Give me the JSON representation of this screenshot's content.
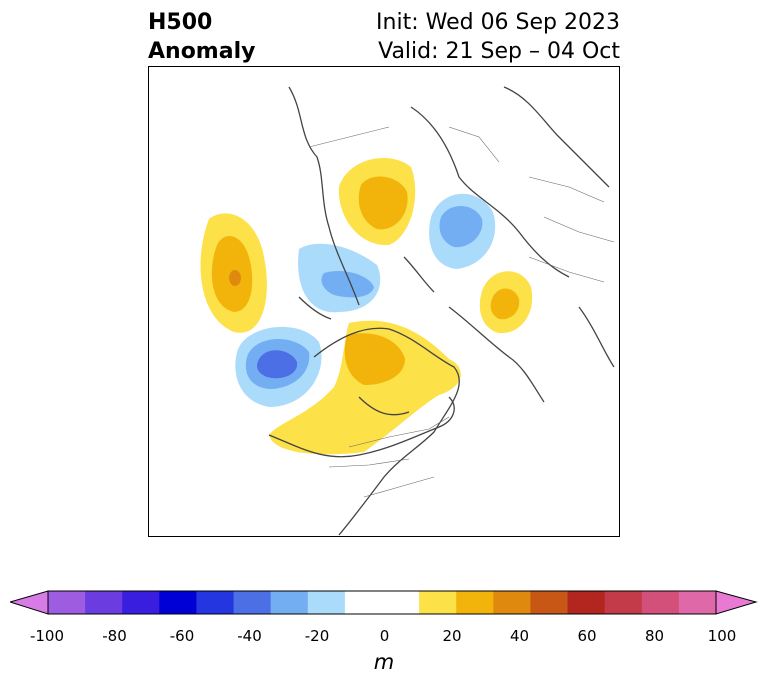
{
  "title": {
    "left_line1": "H500",
    "left_line2": "Anomaly",
    "right_line1": "Init: Wed 06 Sep 2023",
    "right_line2": "Valid: 21 Sep – 04 Oct"
  },
  "colorbar": {
    "unit": "m",
    "ticks": [
      "-100",
      "-80",
      "-60",
      "-40",
      "-20",
      "0",
      "20",
      "40",
      "60",
      "80",
      "100"
    ],
    "colors": [
      "#d77be6",
      "#9e5ce0",
      "#6b3de0",
      "#3a1ee0",
      "#0000d6",
      "#2436e0",
      "#4c6fe6",
      "#73aef2",
      "#aadbfa",
      "#ffffff",
      "#ffffff",
      "#fde148",
      "#f2b40a",
      "#df8a0f",
      "#c85614",
      "#b3251f",
      "#c33a48",
      "#d3507a",
      "#df68a8",
      "#e87ad4"
    ]
  },
  "map": {
    "projection": "north-polar-stereographic",
    "anomaly_features": [
      {
        "name": "pos-north-pacific",
        "sign": "positive",
        "peak_m": 40
      },
      {
        "name": "neg-alaska-coast",
        "sign": "negative",
        "peak_m": -40
      },
      {
        "name": "neg-bering",
        "sign": "negative",
        "peak_m": -30
      },
      {
        "name": "pos-central-canada",
        "sign": "positive",
        "peak_m": 30
      },
      {
        "name": "pos-east-siberia",
        "sign": "positive",
        "peak_m": 30
      },
      {
        "name": "neg-scandinavia",
        "sign": "negative",
        "peak_m": -30
      },
      {
        "name": "pos-western-europe",
        "sign": "positive",
        "peak_m": 30
      }
    ]
  }
}
